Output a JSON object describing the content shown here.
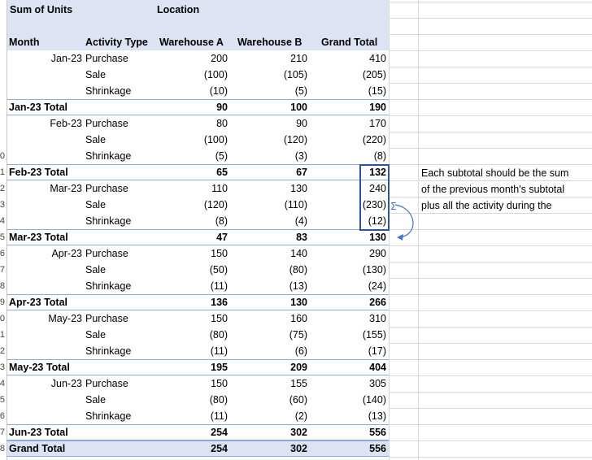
{
  "pivot": {
    "corner_label": "Sum of Units",
    "location_label": "Location",
    "columns": [
      "Month",
      "Activity Type",
      "Warehouse A",
      "Warehouse B",
      "Grand Total"
    ],
    "rows": [
      {
        "month": "Jan-23",
        "activity": "Purchase",
        "a": "200",
        "b": "210",
        "gt": "410",
        "kind": "detail"
      },
      {
        "month": "",
        "activity": "Sale",
        "a": "(100)",
        "b": "(105)",
        "gt": "(205)",
        "kind": "detail"
      },
      {
        "month": "",
        "activity": "Shrinkage",
        "a": "(10)",
        "b": "(5)",
        "gt": "(15)",
        "kind": "detail"
      },
      {
        "month": "Jan-23 Total",
        "activity": "",
        "a": "90",
        "b": "100",
        "gt": "190",
        "kind": "total"
      },
      {
        "month": "Feb-23",
        "activity": "Purchase",
        "a": "80",
        "b": "90",
        "gt": "170",
        "kind": "detail"
      },
      {
        "month": "",
        "activity": "Sale",
        "a": "(100)",
        "b": "(120)",
        "gt": "(220)",
        "kind": "detail"
      },
      {
        "month": "",
        "activity": "Shrinkage",
        "a": "(5)",
        "b": "(3)",
        "gt": "(8)",
        "kind": "detail"
      },
      {
        "month": "Feb-23 Total",
        "activity": "",
        "a": "65",
        "b": "67",
        "gt": "132",
        "kind": "total"
      },
      {
        "month": "Mar-23",
        "activity": "Purchase",
        "a": "110",
        "b": "130",
        "gt": "240",
        "kind": "detail"
      },
      {
        "month": "",
        "activity": "Sale",
        "a": "(120)",
        "b": "(110)",
        "gt": "(230)",
        "kind": "detail"
      },
      {
        "month": "",
        "activity": "Shrinkage",
        "a": "(8)",
        "b": "(4)",
        "gt": "(12)",
        "kind": "detail"
      },
      {
        "month": "Mar-23 Total",
        "activity": "",
        "a": "47",
        "b": "83",
        "gt": "130",
        "kind": "total"
      },
      {
        "month": "Apr-23",
        "activity": "Purchase",
        "a": "150",
        "b": "140",
        "gt": "290",
        "kind": "detail"
      },
      {
        "month": "",
        "activity": "Sale",
        "a": "(50)",
        "b": "(80)",
        "gt": "(130)",
        "kind": "detail"
      },
      {
        "month": "",
        "activity": "Shrinkage",
        "a": "(11)",
        "b": "(13)",
        "gt": "(24)",
        "kind": "detail"
      },
      {
        "month": "Apr-23 Total",
        "activity": "",
        "a": "136",
        "b": "130",
        "gt": "266",
        "kind": "total"
      },
      {
        "month": "May-23",
        "activity": "Purchase",
        "a": "150",
        "b": "160",
        "gt": "310",
        "kind": "detail"
      },
      {
        "month": "",
        "activity": "Sale",
        "a": "(80)",
        "b": "(75)",
        "gt": "(155)",
        "kind": "detail"
      },
      {
        "month": "",
        "activity": "Shrinkage",
        "a": "(11)",
        "b": "(6)",
        "gt": "(17)",
        "kind": "detail"
      },
      {
        "month": "May-23 Total",
        "activity": "",
        "a": "195",
        "b": "209",
        "gt": "404",
        "kind": "total"
      },
      {
        "month": "Jun-23",
        "activity": "Purchase",
        "a": "150",
        "b": "155",
        "gt": "305",
        "kind": "detail"
      },
      {
        "month": "",
        "activity": "Sale",
        "a": "(80)",
        "b": "(60)",
        "gt": "(140)",
        "kind": "detail"
      },
      {
        "month": "",
        "activity": "Shrinkage",
        "a": "(11)",
        "b": "(2)",
        "gt": "(13)",
        "kind": "detail"
      },
      {
        "month": "Jun-23 Total",
        "activity": "",
        "a": "254",
        "b": "302",
        "gt": "556",
        "kind": "total"
      },
      {
        "month": "Grand Total",
        "activity": "",
        "a": "254",
        "b": "302",
        "gt": "556",
        "kind": "grand"
      }
    ]
  },
  "row_numbers": [
    "",
    "",
    "",
    "",
    "",
    "",
    "",
    "",
    "",
    "0",
    "1",
    "2",
    "3",
    "4",
    "5",
    "6",
    "7",
    "8",
    "9",
    "0",
    "1",
    "2",
    "3",
    "4",
    "5",
    "6",
    "7",
    "8"
  ],
  "annotation": {
    "lines": [
      "Each subtotal should be the sum",
      "of the previous month's subtotal",
      "plus all the activity during the"
    ],
    "sigma": "Σ",
    "box_color": "#2f5597",
    "arrow_color": "#4472c4"
  },
  "colors": {
    "header_band": "#dde3f3",
    "separator": "#8ea9db"
  }
}
